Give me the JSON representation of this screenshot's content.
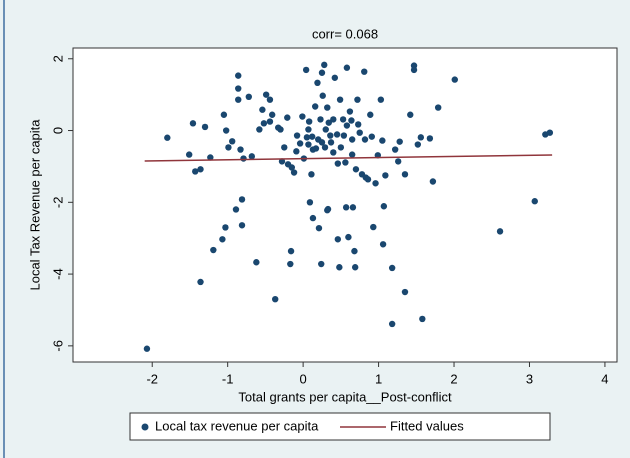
{
  "chart_data": {
    "type": "scatter",
    "title": "corr= 0.068",
    "x_label": "Total grants per capita__Post-conflict",
    "y_label": "Local Tax Revenue per capita",
    "xlim": [
      -3.05,
      4.16
    ],
    "ylim": [
      -6.45,
      2.3
    ],
    "xticks": [
      -2,
      -1,
      0,
      1,
      2,
      3,
      4
    ],
    "yticks": [
      -6,
      -4,
      -2,
      0,
      2
    ],
    "grid": false,
    "legend": "bottom",
    "series": [
      {
        "name": "Local tax revenue per capita",
        "color": "#1a476f",
        "type": "scatter",
        "x": [
          -2.07,
          -1.8,
          -1.51,
          -1.46,
          -1.43,
          -1.36,
          -1.36,
          -1.3,
          -1.23,
          -1.19,
          -1.07,
          -1.05,
          -1.03,
          -1.02,
          -0.99,
          -0.94,
          -0.89,
          -0.86,
          -0.86,
          -0.86,
          -0.83,
          -0.81,
          -0.81,
          -0.79,
          -0.72,
          -0.68,
          -0.62,
          -0.58,
          -0.54,
          -0.52,
          -0.49,
          -0.44,
          -0.44,
          -0.41,
          -0.37,
          -0.33,
          -0.3,
          -0.28,
          -0.25,
          -0.21,
          -0.2,
          -0.17,
          -0.16,
          -0.15,
          -0.12,
          -0.09,
          -0.08,
          -0.04,
          -0.01,
          0.01,
          0.04,
          0.05,
          0.07,
          0.07,
          0.08,
          0.09,
          0.11,
          0.12,
          0.13,
          0.13,
          0.16,
          0.17,
          0.19,
          0.2,
          0.21,
          0.23,
          0.24,
          0.25,
          0.25,
          0.26,
          0.28,
          0.29,
          0.3,
          0.32,
          0.32,
          0.33,
          0.34,
          0.36,
          0.37,
          0.4,
          0.4,
          0.42,
          0.45,
          0.46,
          0.46,
          0.48,
          0.49,
          0.5,
          0.53,
          0.54,
          0.56,
          0.57,
          0.58,
          0.58,
          0.6,
          0.62,
          0.64,
          0.65,
          0.65,
          0.66,
          0.68,
          0.69,
          0.7,
          0.72,
          0.73,
          0.75,
          0.78,
          0.81,
          0.82,
          0.83,
          0.86,
          0.89,
          0.91,
          0.93,
          0.96,
          0.99,
          1.03,
          1.05,
          1.06,
          1.07,
          1.09,
          1.18,
          1.18,
          1.22,
          1.26,
          1.28,
          1.35,
          1.35,
          1.42,
          1.47,
          1.47,
          1.52,
          1.56,
          1.58,
          1.68,
          1.72,
          1.79,
          2.01,
          2.61,
          3.07,
          3.21,
          3.27
        ],
        "values": [
          -6.08,
          -0.2,
          -0.67,
          0.2,
          -1.14,
          -1.08,
          -4.22,
          0.1,
          -0.75,
          -3.33,
          -3.03,
          0.44,
          -2.7,
          0,
          -0.47,
          -0.3,
          -2.2,
          1.53,
          1.17,
          0.86,
          -0.53,
          -1.92,
          -2.64,
          -0.78,
          0.94,
          -0.72,
          -3.67,
          0.03,
          0.58,
          0.2,
          1.0,
          0.86,
          0.25,
          0.44,
          -4.7,
          0.08,
          0.03,
          -0.86,
          -0.47,
          0.36,
          -0.94,
          -3.72,
          -3.36,
          -1.03,
          -1.17,
          -0.58,
          -0.14,
          -0.36,
          0.39,
          -0.78,
          1.69,
          -0.19,
          0.03,
          -0.39,
          0.25,
          -2.0,
          -1.22,
          -0.17,
          -2.44,
          -0.53,
          0.67,
          -0.5,
          1.33,
          -0.25,
          -2.72,
          0.31,
          -3.72,
          1.61,
          -0.33,
          0.97,
          1.83,
          -0.47,
          0.03,
          0.64,
          -2.22,
          -2.19,
          0.22,
          -0.14,
          -0.33,
          0.31,
          -0.61,
          1.47,
          -0.11,
          -0.92,
          -3.03,
          -3.81,
          0.86,
          -0.47,
          0.31,
          -0.14,
          -0.89,
          -2.14,
          1.75,
          0.14,
          -2.97,
          0.53,
          0.28,
          -0.25,
          -0.67,
          -2.14,
          -3.36,
          -3.81,
          -1.08,
          0.86,
          0.17,
          -0.06,
          -1.22,
          1.64,
          -0.25,
          -1.31,
          -1.36,
          0.44,
          -0.17,
          -2.69,
          -1.47,
          -0.69,
          0.86,
          -0.28,
          -3.17,
          -2.11,
          -1.25,
          -3.83,
          -5.39,
          -0.53,
          -0.86,
          -0.31,
          -4.5,
          -1.22,
          0.44,
          1.81,
          1.69,
          -0.39,
          -0.19,
          -5.25,
          -0.22,
          -1.42,
          0.64,
          1.42,
          -2.81,
          -1.97,
          -0.11,
          -0.06
        ]
      },
      {
        "name": "Fitted values",
        "color": "#90353b",
        "type": "line",
        "x": [
          -2.1,
          3.3
        ],
        "values": [
          -0.85,
          -0.68
        ]
      }
    ]
  }
}
